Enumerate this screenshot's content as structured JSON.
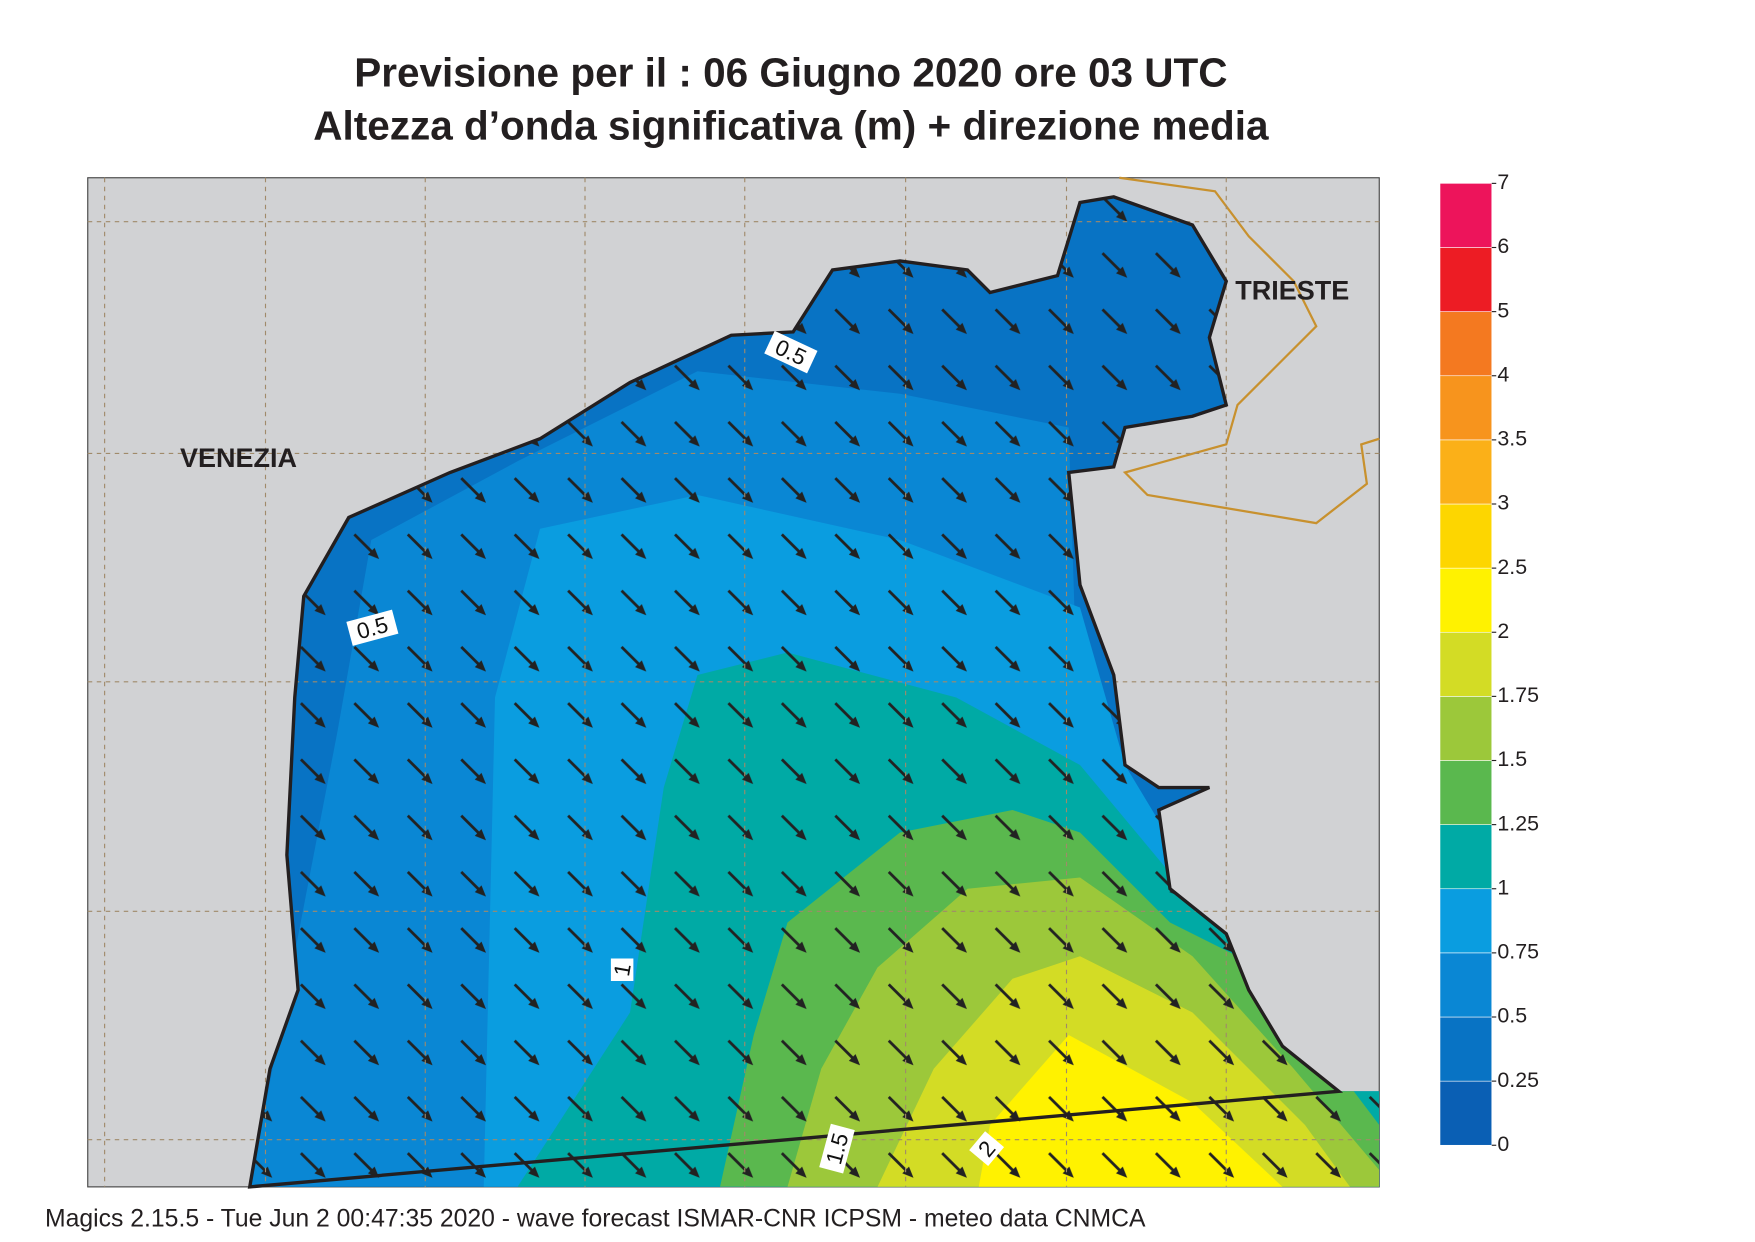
{
  "header": {
    "title_line1": "Previsione per il  :  06   Giugno  2020   ore 03 UTC",
    "title_line2": "Altezza d’onda significativa (m) + direzione media"
  },
  "map": {
    "places": [
      "VENEZIA",
      "TRIESTE"
    ],
    "contour_labels": [
      "0.5",
      "0.5",
      "1",
      "1.5",
      "2"
    ]
  },
  "colorbar": {
    "levels": [
      0,
      0.25,
      0.5,
      0.75,
      1,
      1.25,
      1.5,
      1.75,
      2,
      2.5,
      3,
      3.5,
      4,
      5,
      6,
      7
    ],
    "colors": [
      "#0a5fb4",
      "#0873c4",
      "#0a87d4",
      "#0a9de0",
      "#00aaa5",
      "#5ab84e",
      "#9cc83a",
      "#d3dc25",
      "#fff200",
      "#fdd600",
      "#fbb018",
      "#f7941d",
      "#f47920",
      "#ed1c24",
      "#ed145b"
    ]
  },
  "footer": "Magics 2.15.5 - Tue Jun  2 00:47:35 2020 - wave forecast  ISMAR-CNR  ICPSM - meteo data   CNMCA"
}
